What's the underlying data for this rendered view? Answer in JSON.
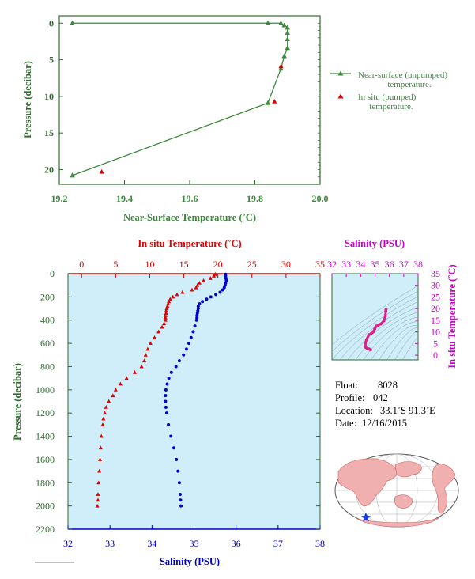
{
  "colors": {
    "green": "#3a8a3a",
    "red": "#e00000",
    "blue": "#0000cc",
    "magenta": "#cc00cc",
    "panel_bg": "#cfeefa",
    "axis_green": "#2f6a2f",
    "map_land": "#f0b0b0",
    "map_sea": "#ffffff"
  },
  "chart_data": [
    {
      "id": "near_surface_profile",
      "type": "line",
      "xlabel": "Near-Surface Temperature (˚C)",
      "ylabel": "Pressure (decibar)",
      "xlim": [
        19.2,
        20.0
      ],
      "ylim": [
        22,
        -1
      ],
      "xticks": [
        "19.2",
        "19.4",
        "19.6",
        "19.8",
        "20.0"
      ],
      "yticks": [
        "0",
        "5",
        "10",
        "15",
        "20"
      ],
      "legend": [
        {
          "label_line1": "Near-surface (unpumped)",
          "label_line2": "temperature."
        },
        {
          "label_line1": "In situ (pumped)",
          "label_line2": "temperature."
        }
      ],
      "series": [
        {
          "name": "Near-surface (unpumped) temperature.",
          "x": [
            19.24,
            19.84,
            19.88,
            19.89,
            19.9,
            19.9,
            19.9,
            19.9,
            19.89,
            19.88,
            19.84,
            19.24
          ],
          "y": [
            0.0,
            0.0,
            0.0,
            0.3,
            0.6,
            1.3,
            2.2,
            3.4,
            4.5,
            6.2,
            10.9,
            20.8
          ]
        },
        {
          "name": "In situ (pumped) temperature.",
          "x": [
            19.88,
            19.86,
            19.33
          ],
          "y": [
            5.9,
            10.7,
            20.3
          ]
        }
      ]
    },
    {
      "id": "deep_profile",
      "type": "scatter",
      "top_xlabel": "In situ Temperature (˚C)",
      "bottom_xlabel": "Salinity (PSU)",
      "ylabel": "Pressure (decibar)",
      "top_xlim": [
        -2,
        35
      ],
      "top_xticks": [
        "0",
        "5",
        "10",
        "15",
        "20",
        "25",
        "30",
        "35"
      ],
      "bottom_xlim": [
        32,
        38
      ],
      "bottom_xticks": [
        "32",
        "33",
        "34",
        "35",
        "36",
        "37",
        "38"
      ],
      "ylim": [
        2200,
        0
      ],
      "yticks": [
        "0",
        "200",
        "400",
        "600",
        "800",
        "1000",
        "1200",
        "1400",
        "1600",
        "1800",
        "2000",
        "2200"
      ],
      "series": [
        {
          "name": "Temperature",
          "pressure": [
            5,
            20,
            40,
            60,
            80,
            100,
            120,
            140,
            160,
            180,
            200,
            220,
            240,
            260,
            280,
            300,
            320,
            340,
            360,
            380,
            400,
            430,
            460,
            500,
            550,
            600,
            650,
            700,
            750,
            800,
            850,
            900,
            950,
            1000,
            1050,
            1100,
            1150,
            1200,
            1250,
            1300,
            1400,
            1500,
            1600,
            1700,
            1800,
            1900,
            1950,
            2000
          ],
          "values": [
            19.6,
            19.4,
            18.9,
            17.9,
            17.3,
            17.0,
            16.8,
            16.2,
            14.8,
            14.0,
            13.4,
            13.0,
            12.8,
            12.7,
            12.6,
            12.5,
            12.4,
            12.4,
            12.3,
            12.3,
            12.3,
            12.1,
            11.8,
            11.3,
            10.7,
            10.1,
            9.7,
            9.4,
            9.2,
            8.8,
            7.8,
            6.6,
            5.7,
            5.0,
            4.6,
            4.0,
            3.6,
            3.4,
            3.2,
            3.1,
            2.9,
            2.8,
            2.7,
            2.6,
            2.5,
            2.4,
            2.4,
            2.3
          ]
        },
        {
          "name": "Salinity",
          "pressure": [
            5,
            20,
            40,
            60,
            80,
            100,
            120,
            140,
            160,
            180,
            200,
            220,
            240,
            260,
            280,
            300,
            320,
            340,
            360,
            380,
            400,
            450,
            500,
            550,
            600,
            650,
            700,
            750,
            800,
            850,
            900,
            950,
            1000,
            1050,
            1100,
            1150,
            1200,
            1300,
            1400,
            1500,
            1600,
            1700,
            1800,
            1900,
            1950,
            2000
          ],
          "values": [
            35.75,
            35.75,
            35.76,
            35.77,
            35.75,
            35.74,
            35.72,
            35.68,
            35.62,
            35.52,
            35.4,
            35.3,
            35.2,
            35.13,
            35.1,
            35.1,
            35.09,
            35.08,
            35.07,
            35.07,
            35.06,
            35.02,
            34.98,
            34.93,
            34.88,
            34.82,
            34.75,
            34.65,
            34.57,
            34.46,
            34.4,
            34.36,
            34.33,
            34.32,
            34.32,
            34.33,
            34.35,
            34.39,
            34.45,
            34.52,
            34.58,
            34.62,
            34.65,
            34.67,
            34.68,
            34.69
          ]
        }
      ]
    },
    {
      "id": "ts_diagram",
      "type": "scatter",
      "top_xlabel": "Salinity (PSU)",
      "right_ylabel": "In situ Temperature (˚C)",
      "xlim": [
        32,
        38
      ],
      "xticks": [
        "32",
        "33",
        "34",
        "35",
        "36",
        "37",
        "38"
      ],
      "ylim": [
        -2,
        35
      ],
      "yticks": [
        "0",
        "5",
        "10",
        "15",
        "20",
        "25",
        "30",
        "35"
      ],
      "x": [
        35.76,
        35.75,
        35.72,
        35.62,
        35.4,
        35.2,
        35.1,
        35.08,
        35.06,
        34.98,
        34.88,
        34.75,
        34.57,
        34.4,
        34.33,
        34.32,
        34.35,
        34.45,
        34.58,
        34.65,
        34.69
      ],
      "y": [
        19.6,
        18.9,
        16.8,
        14.8,
        13.4,
        12.8,
        12.5,
        12.4,
        12.3,
        11.3,
        10.1,
        9.4,
        8.8,
        6.6,
        5.0,
        4.0,
        3.4,
        2.9,
        2.7,
        2.5,
        2.3
      ]
    }
  ],
  "info": {
    "float_label": "Float:",
    "float_value": "8028",
    "profile_label": "Profile:",
    "profile_value": "042",
    "location_label": "Location:",
    "location_value": "33.1˚S 91.3˚E",
    "date_label": "Date:",
    "date_value": "12/16/2015"
  }
}
